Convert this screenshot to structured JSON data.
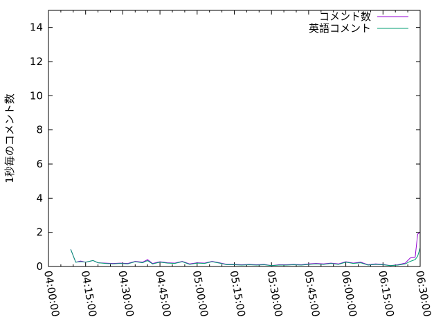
{
  "chart_data": {
    "type": "line",
    "title": "",
    "xlabel": "",
    "ylabel": "1秒毎のコメント数",
    "xlim": [
      "04:00:00",
      "06:30:00"
    ],
    "ylim": [
      0,
      15
    ],
    "xticks": [
      "04:00:00",
      "04:15:00",
      "04:30:00",
      "04:45:00",
      "05:00:00",
      "05:15:00",
      "05:30:00",
      "05:45:00",
      "06:00:00",
      "06:15:00",
      "06:30:00"
    ],
    "yticks": [
      "0",
      "2",
      "4",
      "6",
      "8",
      "10",
      "12",
      "14"
    ],
    "grid": false,
    "legend_position": "top-right",
    "series": [
      {
        "name": "コメント数",
        "color": "#9400d3",
        "x": [
          "04:09",
          "04:11",
          "04:13",
          "04:15",
          "04:18",
          "04:20",
          "04:23",
          "04:26",
          "04:29",
          "04:32",
          "04:35",
          "04:38",
          "04:40",
          "04:42",
          "04:45",
          "04:48",
          "04:51",
          "04:54",
          "04:57",
          "05:00",
          "05:03",
          "05:06",
          "05:09",
          "05:12",
          "05:15",
          "05:18",
          "05:21",
          "05:24",
          "05:27",
          "05:30",
          "05:33",
          "05:36",
          "05:39",
          "05:42",
          "05:45",
          "05:48",
          "05:51",
          "05:54",
          "05:57",
          "06:00",
          "06:03",
          "06:06",
          "06:09",
          "06:12",
          "06:15",
          "06:18",
          "06:21",
          "06:24",
          "06:26",
          "06:28",
          "06:29",
          "06:30"
        ],
        "values": [
          1.0,
          0.25,
          0.32,
          0.25,
          0.35,
          0.22,
          0.2,
          0.18,
          0.2,
          0.18,
          0.3,
          0.25,
          0.4,
          0.18,
          0.28,
          0.22,
          0.2,
          0.3,
          0.15,
          0.22,
          0.2,
          0.3,
          0.22,
          0.12,
          0.12,
          0.1,
          0.12,
          0.1,
          0.12,
          0.05,
          0.1,
          0.1,
          0.12,
          0.1,
          0.15,
          0.18,
          0.15,
          0.2,
          0.15,
          0.28,
          0.2,
          0.25,
          0.1,
          0.15,
          0.12,
          0.05,
          0.1,
          0.2,
          0.5,
          0.55,
          1.9,
          2.0
        ]
      },
      {
        "name": "英語コメント",
        "color": "#009e73",
        "x": [
          "04:09",
          "04:11",
          "04:13",
          "04:15",
          "04:18",
          "04:20",
          "04:23",
          "04:26",
          "04:29",
          "04:32",
          "04:35",
          "04:38",
          "04:40",
          "04:42",
          "04:45",
          "04:48",
          "04:51",
          "04:54",
          "04:57",
          "05:00",
          "05:03",
          "05:06",
          "05:09",
          "05:12",
          "05:15",
          "05:18",
          "05:21",
          "05:24",
          "05:27",
          "05:30",
          "05:33",
          "05:36",
          "05:39",
          "05:42",
          "05:45",
          "05:48",
          "05:51",
          "05:54",
          "05:57",
          "06:00",
          "06:03",
          "06:06",
          "06:09",
          "06:12",
          "06:15",
          "06:18",
          "06:21",
          "06:24",
          "06:26",
          "06:28",
          "06:29",
          "06:30"
        ],
        "values": [
          1.0,
          0.25,
          0.28,
          0.25,
          0.35,
          0.22,
          0.18,
          0.15,
          0.18,
          0.15,
          0.28,
          0.22,
          0.35,
          0.15,
          0.25,
          0.2,
          0.18,
          0.28,
          0.12,
          0.2,
          0.18,
          0.28,
          0.2,
          0.1,
          0.1,
          0.08,
          0.1,
          0.08,
          0.1,
          0.05,
          0.08,
          0.08,
          0.1,
          0.08,
          0.12,
          0.15,
          0.12,
          0.18,
          0.12,
          0.25,
          0.18,
          0.22,
          0.08,
          0.12,
          0.1,
          0.05,
          0.08,
          0.15,
          0.3,
          0.4,
          0.6,
          1.1
        ]
      }
    ]
  }
}
